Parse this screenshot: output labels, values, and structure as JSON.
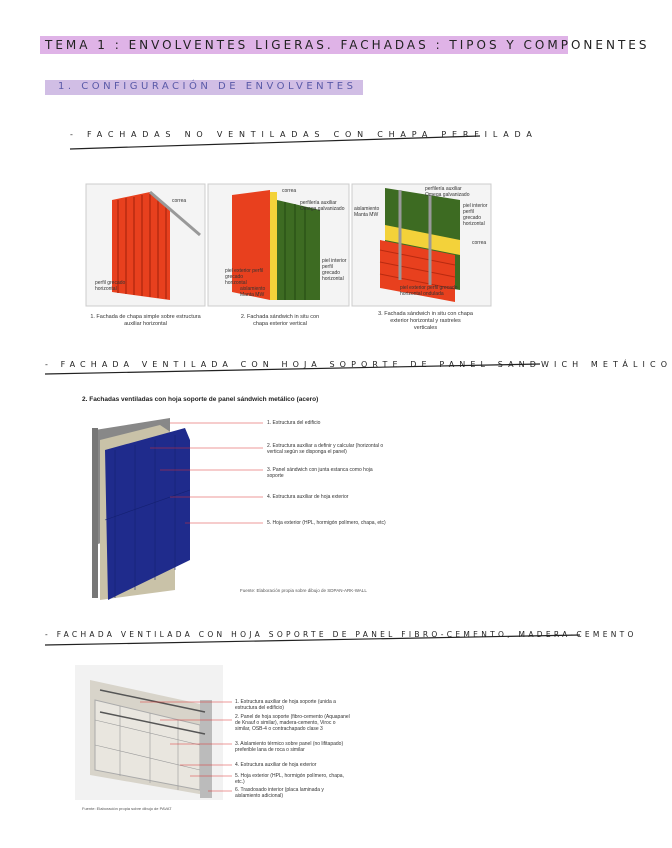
{
  "header": {
    "title": "TEMA 1 : ENVOLVENTES LIGERAS. FACHADAS : Tipos y componentes"
  },
  "section": {
    "title": "1. CONFIGURACIÓN DE ENVOLVENTES"
  },
  "subsections": [
    {
      "title": "- FACHADAS NO VENTILADAS CON CHAPA PERFILADA",
      "figures": [
        {
          "caption": "1. Fachada de chapa simple sobre estructura auxiliar horizontal",
          "labels": [
            "correa",
            "perfil grecado horizontal"
          ]
        },
        {
          "caption": "2. Fachada sándwich in situ con chapa exterior vertical",
          "labels": [
            "correa",
            "perfilería auxiliar Omega galvanizado",
            "piel exterior perfil grecado horizontal",
            "aislamiento Manta MW",
            "piel interior perfil grecado horizontal"
          ]
        },
        {
          "caption": "3. Fachada sándwich in situ con chapa exterior horizontal y rastreles verticales",
          "labels": [
            "perfilería auxiliar Omega galvanizado",
            "aislamiento Manta MW",
            "piel interior perfil grecado horizontal",
            "correa",
            "piel exterior perfil grecado horizontal ondulada"
          ]
        }
      ]
    },
    {
      "title": "- FACHADA VENTILADA CON HOJA SOPORTE DE PANEL SANDWICH METÁLICO",
      "heading": "2. Fachadas ventiladas con hoja soporte de panel sándwich metálico (acero)",
      "labels": [
        "1. Estructura del edificio",
        "2. Estructura auxiliar a definir y calcular (horizontal o vertical según se disponga el panel)",
        "3. Panel sándwich con junta estanca como hoja soporte",
        "4. Estructura auxiliar de hoja exterior",
        "5. Hoja exterior (HPL, hormigón polímero, chapa, etc)"
      ],
      "source": "Fuente: Elaboración propia sobre dibujo de SDPAN-ARK-WALL"
    },
    {
      "title": "- FACHADA VENTILADA CON HOJA SOPORTE DE PANEL FIBRO-CEMENTO, MADERA-CEMENTO",
      "labels": [
        "1. Estructura auxiliar de hoja soporte (unida a estructura del edificio)",
        "2. Panel de hoja soporte (fibro-cemento (Aquapanel de Knauf o similar), madera-cemento, Viroc o similar, OSB-4 o contrachapado clase 3",
        "3. Aislamiento térmico sobre panel (no lifitapado) preferible lana de roca o similar",
        "4. Estructura auxiliar de hoja exterior",
        "5. Hoja exterior (HPL, hormigón polímero, chapa, etc.)",
        "6. Trasdosado interior (placa laminada y aislamiento adicional)"
      ],
      "source": "Fuente: Elaboración propia sobre dibujo de PAVAT"
    }
  ]
}
